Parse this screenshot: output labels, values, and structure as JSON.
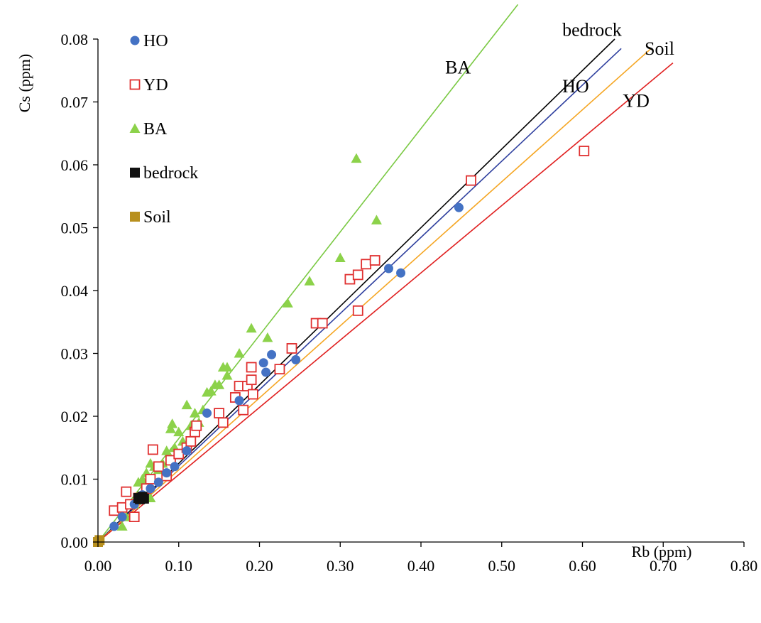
{
  "chart_data": {
    "type": "scatter",
    "title": "",
    "xlabel": "Rb (ppm)",
    "ylabel": "Cs (ppm)",
    "xlim": [
      0,
      0.8
    ],
    "ylim": [
      0,
      0.08
    ],
    "x_ticks": [
      0.0,
      0.1,
      0.2,
      0.3,
      0.4,
      0.5,
      0.6,
      0.7,
      0.8
    ],
    "x_tick_labels": [
      "0.00",
      "0.10",
      "0.20",
      "0.30",
      "0.40",
      "0.50",
      "0.60",
      "0.70",
      "0.80"
    ],
    "y_ticks": [
      0.0,
      0.01,
      0.02,
      0.03,
      0.04,
      0.05,
      0.06,
      0.07,
      0.08
    ],
    "y_tick_labels": [
      "0.00",
      "0.01",
      "0.02",
      "0.03",
      "0.04",
      "0.05",
      "0.06",
      "0.07",
      "0.08"
    ],
    "grid": false,
    "legend_position": "top-left",
    "series": [
      {
        "name": "HO",
        "marker": "circle",
        "color": "#4472C4",
        "points": [
          [
            0.02,
            0.0025
          ],
          [
            0.03,
            0.004
          ],
          [
            0.045,
            0.006
          ],
          [
            0.055,
            0.0075
          ],
          [
            0.065,
            0.0085
          ],
          [
            0.075,
            0.0095
          ],
          [
            0.085,
            0.011
          ],
          [
            0.095,
            0.012
          ],
          [
            0.11,
            0.0145
          ],
          [
            0.135,
            0.0205
          ],
          [
            0.175,
            0.0225
          ],
          [
            0.205,
            0.0285
          ],
          [
            0.208,
            0.027
          ],
          [
            0.215,
            0.0298
          ],
          [
            0.245,
            0.029
          ],
          [
            0.36,
            0.0435
          ],
          [
            0.375,
            0.0428
          ],
          [
            0.447,
            0.0532
          ]
        ]
      },
      {
        "name": "YD",
        "marker": "square-open",
        "color": "#E03030",
        "points": [
          [
            0.02,
            0.005
          ],
          [
            0.03,
            0.0055
          ],
          [
            0.035,
            0.008
          ],
          [
            0.04,
            0.006
          ],
          [
            0.045,
            0.004
          ],
          [
            0.05,
            0.007
          ],
          [
            0.06,
            0.0085
          ],
          [
            0.065,
            0.01
          ],
          [
            0.068,
            0.0147
          ],
          [
            0.075,
            0.012
          ],
          [
            0.085,
            0.0105
          ],
          [
            0.09,
            0.013
          ],
          [
            0.1,
            0.014
          ],
          [
            0.11,
            0.015
          ],
          [
            0.115,
            0.016
          ],
          [
            0.12,
            0.0175
          ],
          [
            0.122,
            0.0185
          ],
          [
            0.15,
            0.0205
          ],
          [
            0.155,
            0.019
          ],
          [
            0.17,
            0.023
          ],
          [
            0.175,
            0.0248
          ],
          [
            0.18,
            0.021
          ],
          [
            0.185,
            0.0248
          ],
          [
            0.19,
            0.0278
          ],
          [
            0.19,
            0.0258
          ],
          [
            0.192,
            0.0235
          ],
          [
            0.225,
            0.0275
          ],
          [
            0.24,
            0.0308
          ],
          [
            0.27,
            0.0348
          ],
          [
            0.278,
            0.0348
          ],
          [
            0.312,
            0.0418
          ],
          [
            0.322,
            0.0425
          ],
          [
            0.322,
            0.0368
          ],
          [
            0.332,
            0.0442
          ],
          [
            0.343,
            0.0448
          ],
          [
            0.462,
            0.0575
          ],
          [
            0.602,
            0.0622
          ]
        ]
      },
      {
        "name": "BA",
        "marker": "triangle",
        "color": "#8CD24A",
        "points": [
          [
            0.03,
            0.0025
          ],
          [
            0.035,
            0.004
          ],
          [
            0.045,
            0.006
          ],
          [
            0.05,
            0.0095
          ],
          [
            0.055,
            0.01
          ],
          [
            0.06,
            0.011
          ],
          [
            0.065,
            0.0125
          ],
          [
            0.065,
            0.007
          ],
          [
            0.07,
            0.012
          ],
          [
            0.075,
            0.0115
          ],
          [
            0.08,
            0.0125
          ],
          [
            0.085,
            0.0145
          ],
          [
            0.09,
            0.018
          ],
          [
            0.092,
            0.0188
          ],
          [
            0.095,
            0.015
          ],
          [
            0.1,
            0.0175
          ],
          [
            0.105,
            0.016
          ],
          [
            0.11,
            0.0218
          ],
          [
            0.115,
            0.0185
          ],
          [
            0.12,
            0.0205
          ],
          [
            0.125,
            0.019
          ],
          [
            0.13,
            0.021
          ],
          [
            0.135,
            0.0238
          ],
          [
            0.14,
            0.024
          ],
          [
            0.145,
            0.025
          ],
          [
            0.15,
            0.025
          ],
          [
            0.155,
            0.0278
          ],
          [
            0.16,
            0.0278
          ],
          [
            0.16,
            0.0265
          ],
          [
            0.175,
            0.03
          ],
          [
            0.19,
            0.034
          ],
          [
            0.21,
            0.0325
          ],
          [
            0.235,
            0.038
          ],
          [
            0.262,
            0.0415
          ],
          [
            0.3,
            0.0452
          ],
          [
            0.32,
            0.061
          ],
          [
            0.345,
            0.0512
          ]
        ]
      },
      {
        "name": "bedrock",
        "marker": "square",
        "color": "#111111",
        "points": [
          [
            0.05,
            0.007
          ],
          [
            0.052,
            0.0068
          ],
          [
            0.055,
            0.0072
          ],
          [
            0.057,
            0.0069
          ]
        ]
      },
      {
        "name": "Soil",
        "marker": "square",
        "color": "#B8901E",
        "points": [
          [
            0.0,
            0.0
          ],
          [
            0.002,
            0.0003
          ]
        ]
      }
    ],
    "trendlines": [
      {
        "label": "BA",
        "color": "#7AC943",
        "x0": 0.0,
        "y0": 0.0,
        "x1": 0.52,
        "y1": 0.0855,
        "label_x": 0.43,
        "label_y": 0.0745
      },
      {
        "label": "bedrock",
        "color": "#000000",
        "x0": 0.0,
        "y0": 0.0,
        "x1": 0.64,
        "y1": 0.08,
        "label_x": 0.575,
        "label_y": 0.0805
      },
      {
        "label": "HO",
        "color": "#2E3F9E",
        "x0": 0.0,
        "y0": 0.0,
        "x1": 0.648,
        "y1": 0.0785,
        "label_x": 0.575,
        "label_y": 0.0715
      },
      {
        "label": "Soil",
        "color": "#F5A623",
        "x0": 0.0,
        "y0": 0.0,
        "x1": 0.685,
        "y1": 0.0785,
        "label_x": 0.677,
        "label_y": 0.0775
      },
      {
        "label": "YD",
        "color": "#E02020",
        "x0": 0.0,
        "y0": 0.0,
        "x1": 0.712,
        "y1": 0.0762,
        "label_x": 0.65,
        "label_y": 0.0692
      }
    ]
  }
}
